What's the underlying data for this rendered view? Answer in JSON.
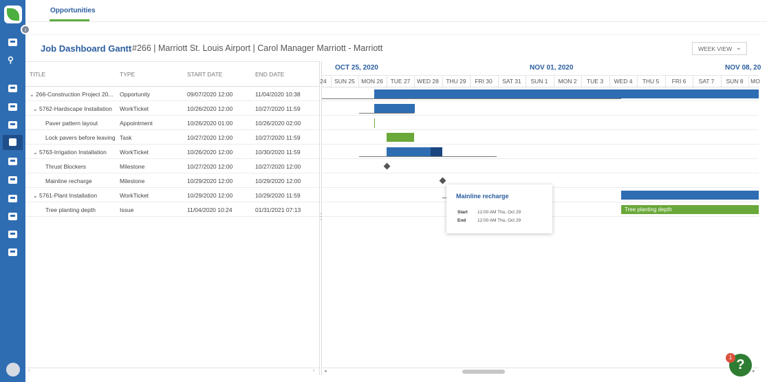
{
  "tabs": {
    "opportunities": "Opportunities"
  },
  "header": {
    "title": "Job Dashboard Gantt",
    "subtitle": "#266 | Marriott St. Louis Airport | Carol Manager Marriott - Marriott",
    "view_select": "WEEK VIEW"
  },
  "grid": {
    "columns": {
      "title": "TITLE",
      "type": "TYPE",
      "start": "START DATE",
      "end": "END DATE"
    },
    "rows": [
      {
        "title": "266-Construction Project 20...",
        "type": "Opportunity",
        "start": "09/07/2020 12:00",
        "end": "11/04/2020 10:38"
      },
      {
        "title": "5762-Hardscape Installation",
        "type": "WorkTicket",
        "start": "10/26/2020 12:00",
        "end": "10/27/2020 11:59"
      },
      {
        "title": "Paver pattern layout",
        "type": "Appointment",
        "start": "10/26/2020 01:00",
        "end": "10/26/2020 02:00"
      },
      {
        "title": "Lock pavers before leaving",
        "type": "Task",
        "start": "10/27/2020 12:00",
        "end": "10/27/2020 11:59"
      },
      {
        "title": "5763-Irrigation Installation",
        "type": "WorkTicket",
        "start": "10/26/2020 12:00",
        "end": "10/30/2020 11:59"
      },
      {
        "title": "Thrust Blockers",
        "type": "Milestone",
        "start": "10/27/2020 12:00",
        "end": "10/27/2020 12:00"
      },
      {
        "title": "Mainline recharge",
        "type": "Milestone",
        "start": "10/29/2020 12:00",
        "end": "10/29/2020 12:00"
      },
      {
        "title": "5761-Plant Installation",
        "type": "WorkTicket",
        "start": "10/29/2020 12:00",
        "end": "10/29/2020 11:59"
      },
      {
        "title": "Tree planting depth",
        "type": "Issue",
        "start": "11/04/2020 10:24",
        "end": "01/31/2021 07:13"
      }
    ]
  },
  "timeline": {
    "months": [
      "OCT 25, 2020",
      "NOV 01, 2020",
      "NOV 08, 20"
    ],
    "days": [
      "24",
      "SUN 25",
      "MON 26",
      "TUE 27",
      "WED 28",
      "THU 29",
      "FRI 30",
      "SAT 31",
      "SUN 1",
      "MON 2",
      "TUE 3",
      "WED 4",
      "THU 5",
      "FRI 6",
      "SAT 7",
      "SUN 8",
      "MO"
    ],
    "bar_label": "Tree planting depth"
  },
  "tooltip": {
    "title": "Mainline recharge",
    "start_label": "Start",
    "start_value": "12:00 AM Thu, Oct 29",
    "end_label": "End",
    "end_value": "12:00 AM Thu, Oct 29"
  },
  "help": {
    "badge": "1",
    "label": "?"
  },
  "colors": {
    "nav": "#2f6db3",
    "accent": "#2a5d9f",
    "bar_blue": "#2f6db3",
    "bar_dark": "#1b467f",
    "bar_green": "#6aa83a",
    "tab_underline": "#5cad3d"
  }
}
